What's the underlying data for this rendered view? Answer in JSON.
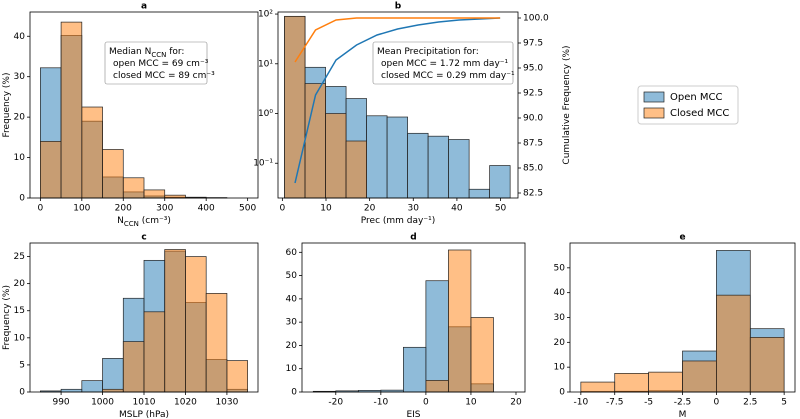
{
  "legend": {
    "entries": [
      "Open MCC",
      "Closed MCC"
    ],
    "colors": [
      "#1f77b4",
      "#ff7f0e"
    ]
  },
  "chart_data": [
    {
      "type": "histogram",
      "title": "a",
      "xlabel": [
        {
          "text": "N"
        },
        {
          "text": "CCN",
          "sub": true
        },
        {
          "text": " (cm⁻³)"
        }
      ],
      "ylabel": [
        {
          "text": "Frequency (%)"
        }
      ],
      "annotation": [
        [
          {
            "text": "Median N"
          },
          {
            "text": "CCN",
            "sub": true
          },
          {
            "text": " for:"
          }
        ],
        [
          {
            "text": "open MCC = 69 cm⁻³"
          }
        ],
        [
          {
            "text": "closed MCC = 89 cm⁻³"
          }
        ]
      ],
      "bins": [
        0,
        50,
        100,
        150,
        200,
        250,
        300,
        350,
        400,
        450,
        500
      ],
      "series": [
        {
          "color": "#1f77b4",
          "values": [
            32.2,
            40.2,
            19,
            5.2,
            1.5,
            0.5,
            0.2,
            0.1,
            0,
            0
          ]
        },
        {
          "color": "#ff7f0e",
          "values": [
            14,
            43.5,
            22.5,
            12,
            5,
            2,
            0.7,
            0.2,
            0.1,
            0
          ]
        }
      ],
      "xlim": [
        -25,
        525
      ],
      "xticks": [
        0,
        100,
        200,
        300,
        400,
        500
      ],
      "ylim": [
        0,
        46
      ],
      "yticks": [
        0,
        10,
        20,
        30,
        40
      ]
    },
    {
      "type": "histogram",
      "title": "b",
      "log_y": true,
      "xlabel": [
        {
          "text": "Prec (mm day⁻¹)"
        }
      ],
      "y2label": [
        {
          "text": "Cumulative Frequency (%)"
        }
      ],
      "annotation": [
        [
          {
            "text": "Mean Precipitation for:"
          }
        ],
        [
          {
            "text": "open MCC = 1.72 mm day⁻¹"
          }
        ],
        [
          {
            "text": "closed MCC = 0.29 mm day⁻¹"
          }
        ]
      ],
      "bins": [
        0.5,
        5.2,
        9.9,
        14.6,
        19.3,
        24,
        28.7,
        33.4,
        38.1,
        42.8,
        47.5,
        52.2
      ],
      "series": [
        {
          "color": "#1f77b4",
          "values": [
            90,
            8.5,
            3.5,
            2,
            0.9,
            0.85,
            0.4,
            0.35,
            0.3,
            0.03,
            0.09
          ]
        },
        {
          "color": "#ff7f0e",
          "values": [
            90,
            4,
            1,
            0.28,
            null,
            null,
            null,
            null,
            null,
            null,
            null
          ]
        }
      ],
      "lines": [
        {
          "color": "#1f77b4",
          "axis": "y2",
          "x": [
            2.9,
            7.6,
            12.3,
            17,
            21.7,
            26.4,
            31.1,
            35.8,
            40.5,
            45.2,
            49.9
          ],
          "values": [
            83.5,
            92.3,
            95.8,
            97.3,
            98.3,
            98.9,
            99.3,
            99.6,
            99.8,
            99.9,
            100
          ]
        },
        {
          "color": "#ff7f0e",
          "axis": "y2",
          "x": [
            2.9,
            7.6,
            12.3,
            17,
            21.7,
            26.4,
            31.1,
            35.8,
            40.5,
            45.2,
            49.9
          ],
          "values": [
            95.6,
            98.8,
            99.8,
            100,
            100,
            100,
            100,
            100,
            100,
            100,
            100
          ]
        }
      ],
      "xlim": [
        -1,
        54
      ],
      "xticks": [
        0,
        10,
        20,
        30,
        40,
        50
      ],
      "ylim": [
        0.02,
        110
      ],
      "yticks": [
        {
          "value": 0.1,
          "label": "10⁻¹"
        },
        {
          "value": 1,
          "label": "10⁰"
        },
        {
          "value": 10,
          "label": "10¹"
        },
        {
          "value": 100,
          "label": "10²"
        }
      ],
      "y2lim": [
        82,
        100.6
      ],
      "y2ticks": [
        82.5,
        {
          "value": 85,
          "label": "85.0"
        },
        87.5,
        {
          "value": 90,
          "label": "90.0"
        },
        92.5,
        {
          "value": 95,
          "label": "95.0"
        },
        97.5,
        {
          "value": 100,
          "label": "100.0"
        }
      ]
    },
    {
      "type": "histogram",
      "title": "c",
      "xlabel": [
        {
          "text": "MSLP (hPa)"
        }
      ],
      "ylabel": [
        {
          "text": "Frequency (%)"
        }
      ],
      "bins": [
        985,
        990,
        995,
        1000,
        1005,
        1010,
        1015,
        1020,
        1025,
        1030,
        1035
      ],
      "series": [
        {
          "color": "#1f77b4",
          "values": [
            0.2,
            0.5,
            2.1,
            6.2,
            17.3,
            24.3,
            26,
            16.5,
            6,
            0.5
          ]
        },
        {
          "color": "#ff7f0e",
          "values": [
            0,
            0,
            0,
            0.5,
            9.3,
            14.8,
            26.3,
            25,
            18.2,
            5.8
          ]
        }
      ],
      "xlim": [
        982.5,
        1037.5
      ],
      "xticks": [
        990,
        1000,
        1010,
        1020,
        1030
      ],
      "ylim": [
        0,
        27.5
      ],
      "yticks": [
        0,
        5,
        10,
        15,
        20,
        25
      ]
    },
    {
      "type": "histogram",
      "title": "d",
      "xlabel": [
        {
          "text": "EIS"
        }
      ],
      "bins": [
        -25,
        -20,
        -15,
        -10,
        -5,
        0,
        5,
        10,
        15
      ],
      "series": [
        {
          "color": "#1f77b4",
          "values": [
            0.3,
            0.5,
            0.7,
            0.8,
            19.2,
            47.8,
            28,
            3.5
          ]
        },
        {
          "color": "#ff7f0e",
          "values": [
            0,
            0,
            0,
            0,
            0,
            5,
            61,
            32
          ]
        }
      ],
      "xlim": [
        -27.5,
        22
      ],
      "xticks": [
        -20,
        -10,
        0,
        10,
        20
      ],
      "ylim": [
        0,
        64
      ],
      "yticks": [
        0,
        10,
        20,
        30,
        40,
        50,
        60
      ]
    },
    {
      "type": "histogram",
      "title": "e",
      "xlabel": [
        {
          "text": "M"
        }
      ],
      "bins": [
        -10,
        -7.5,
        -5,
        -2.5,
        0,
        2.5,
        5
      ],
      "series": [
        {
          "color": "#1f77b4",
          "values": [
            0.2,
            0.3,
            0.5,
            16.5,
            57,
            25.5
          ]
        },
        {
          "color": "#ff7f0e",
          "values": [
            4,
            7.5,
            8,
            12.5,
            39,
            22
          ]
        }
      ],
      "xlim": [
        -10.8,
        5.8
      ],
      "xticks": [
        -10,
        -7.5,
        -5,
        -2.5,
        0,
        2.5,
        5
      ],
      "ylim": [
        0,
        60
      ],
      "yticks": [
        0,
        10,
        20,
        30,
        40,
        50
      ]
    }
  ]
}
